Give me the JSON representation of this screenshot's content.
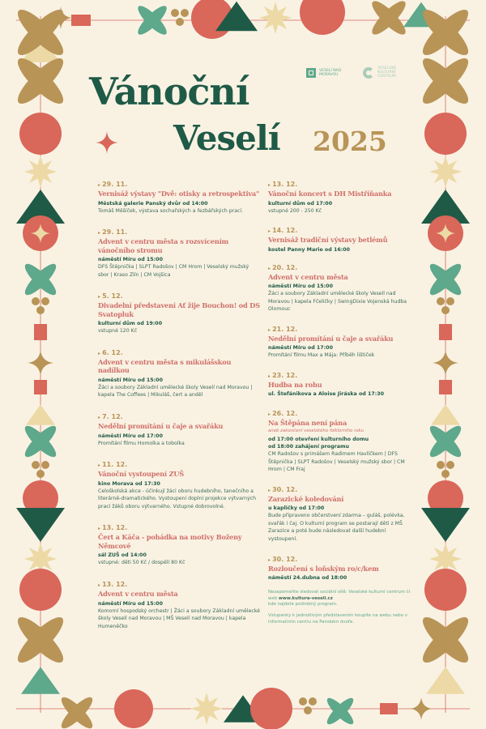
{
  "header": {
    "title_line1": "Vánoční",
    "title_line2": "Veselí",
    "year": "2025",
    "logos": [
      "Veselí nad Moravou",
      "Veselské kulturní centrum"
    ]
  },
  "colors": {
    "background": "#f9f2e3",
    "green": "#1f5a47",
    "gold": "#b89457",
    "red": "#d9675a",
    "teal": "#5ea88c",
    "cream": "#ecd9a5",
    "heading": "#d0706a"
  },
  "events_left": [
    {
      "date": "29. 11.",
      "title": "Vernisáž výstavy \"Dvě: otisky a retrospektiva\"",
      "venue": "Městská galerie Panský dvůr od 14:00",
      "desc": "Tomáš Měšíček, výstava sochařských a řezbářských prací."
    },
    {
      "date": "29. 11.",
      "title": "Advent v centru města s rozsvícením vánočního stromu",
      "venue": "náměstí Míru od 15:00",
      "desc": "DFS Štěpnička | SLPT Radošov | CM Hrom | Veselský mužský sbor | Kraso Zlín | CM Vojšica"
    },
    {
      "date": "5. 12.",
      "title": "Divadelní představení Ať žije Bouchon! od DS Svatopluk",
      "venue": "kulturní dům od 19:00",
      "desc": "vstupné 120 Kč"
    },
    {
      "date": "6. 12.",
      "title": "Advent v centru města s mikulášskou nadílkou",
      "venue": "náměstí Míru od 15:00",
      "desc": "Žáci a soubory Základní umělecké školy Veselí nad Moravou | kapela The Coffees | Mikuláš, čert a anděl"
    },
    {
      "date": "7. 12.",
      "title": "Nedělní promítání u čaje a svařáku",
      "venue": "náměstí Míru od 17:00",
      "desc": "Promítání filmu Homolka a tobolka"
    },
    {
      "date": "11. 12.",
      "title": "Vánoční vystoupení ZUŠ",
      "venue": "kino Morava od 17:30",
      "desc": "Celoškolská akce - účinkují žáci oboru hudebního, tanečního a literárně-dramatického. Vystoupení doplní projekce výtvarných prací žáků oboru výtvarného. Vstupné dobrovolné."
    },
    {
      "date": "13. 12.",
      "title": "Čert a Káča - pohádka na motivy Boženy Němcové",
      "venue": "sál ZUŠ od 14:00",
      "desc": "vstupné: děti 50 Kč / dospělí 80 Kč"
    },
    {
      "date": "13. 12.",
      "title": "Advent v centru města",
      "venue": "náměstí Míru od 15:00",
      "desc": "Komorní hospodský orchestr | Žáci a soubory Základní umělecké školy Veselí nad Moravou | MŠ Veselí nad Moravou | kapela Humeněčko"
    }
  ],
  "events_right": [
    {
      "date": "13. 12.",
      "title": "Vánoční koncert s DH Mistříňanka",
      "venue": "kulturní dům od 17:00",
      "desc": "vstupné 200 - 250 Kč"
    },
    {
      "date": "14. 12.",
      "title": "Vernisáž tradiční výstavy betlémů",
      "venue": "kostel Panny Marie od 16:00",
      "desc": ""
    },
    {
      "date": "20. 12.",
      "title": "Advent v centru města",
      "venue": "náměstí Míru od 15:00",
      "desc": "Žáci a soubory Základní umělecké školy Veselí nad Moravou | kapela Fčeličky | SwingDixie Vojenská hudba Olomouc"
    },
    {
      "date": "21. 12.",
      "title": "Nedělní promítání u čaje a svařáku",
      "venue": "náměstí Míru od 17:00",
      "desc": "Promítání filmu Max a Mája: Příběh lištiček"
    },
    {
      "date": "23. 12.",
      "title": "Hudba na rohu",
      "venue": "ul. Štefánikova a Aloise Jiráska od 17:30",
      "desc": ""
    },
    {
      "date": "26. 12.",
      "title": "Na Štěpána není pána",
      "subtitle": "aneb zakončení veselského folklorního roku",
      "venue": "od 17:00 otevření kulturního domu\nod 18:00 zahájení programu",
      "desc": "CM Radošov s primášem Radimem Havlíčkem | DFS Štěpnička | SLPT Radošov | Veselský mužský sbor | CM Hrom | CM Fraj"
    },
    {
      "date": "30. 12.",
      "title": "Zarazické koledování",
      "venue": "u kapličky od 17:00",
      "desc": "Bude připraveno občerstvení zdarma – guláš, polévka, svařák i čaj. O kulturní program se postarají děti z MŠ Zarazice a poté bude následovat další hudební vystoupení."
    },
    {
      "date": "30. 12.",
      "title": "Rozloučení s loňským ro/c/kem",
      "venue": "náměstí 24.dubna od 18:00",
      "desc": ""
    }
  ],
  "footer": {
    "social_text": "Nezapomeňte sledovat sociální sítě: Veselské kulturní centrum či web",
    "website": "www.kultura-veseli.cz",
    "social_text2": "kde najdete podrobný program.",
    "tickets": "Vstupenky k jednotlivým představením koupíte na webu nebo v informačním centru na Panském dvoře."
  }
}
